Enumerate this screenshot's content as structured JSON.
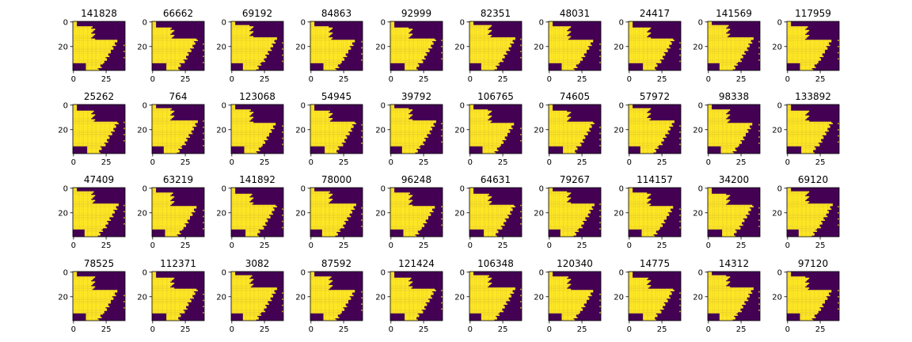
{
  "chart_data": {
    "type": "heatmap",
    "layout": {
      "rows": 4,
      "cols": 10
    },
    "xticks": [
      "0",
      "25"
    ],
    "yticks": [
      "0",
      "20"
    ],
    "image_size": 40,
    "colors": {
      "low": "#440154",
      "high": "#fde725"
    },
    "titles": [
      "141828",
      "66662",
      "69192",
      "84863",
      "92999",
      "82351",
      "48031",
      "24417",
      "141569",
      "117959",
      "25262",
      "764",
      "123068",
      "54945",
      "39792",
      "106765",
      "74605",
      "57972",
      "98338",
      "133892",
      "47409",
      "63219",
      "141892",
      "78000",
      "96248",
      "64631",
      "79267",
      "114157",
      "34200",
      "69120",
      "78525",
      "112371",
      "3082",
      "87592",
      "121424",
      "106348",
      "120340",
      "14775",
      "14312",
      "97120"
    ]
  }
}
